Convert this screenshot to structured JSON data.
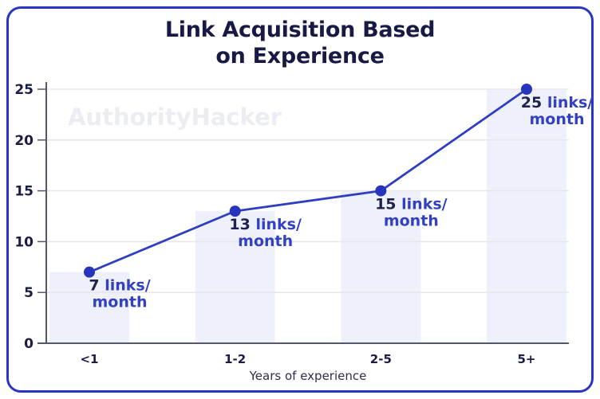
{
  "title_lines": [
    "Link Acquisition Based",
    "on Experience"
  ],
  "watermark": "AuthorityHacker",
  "chart_data": {
    "type": "line",
    "title": "Link Acquisition Based on Experience",
    "categories": [
      "<1",
      "1-2",
      "2-5",
      "5+"
    ],
    "values": [
      7,
      13,
      15,
      25
    ],
    "point_label_unit_line1": "links/",
    "point_label_unit_line2": "month",
    "xlabel": "Years of experience",
    "ylabel": "",
    "ylim": [
      0,
      25
    ],
    "yticks": [
      0,
      5,
      10,
      15,
      20,
      25
    ],
    "grid": true,
    "legend": "none",
    "background_bars": true,
    "colors": {
      "line": "#2f3ec1",
      "point": "#2735bd",
      "label_number": "#21214d",
      "label_text": "#3240c4",
      "axis": "#54576b",
      "grid": "#e7e8ea",
      "bar_fill": "#eef1fb",
      "tick_label": "#1b1b45",
      "axis_title": "#2e2e4d",
      "title": "#191945",
      "watermark": "#ecedf2",
      "border": "#2936c3"
    }
  }
}
